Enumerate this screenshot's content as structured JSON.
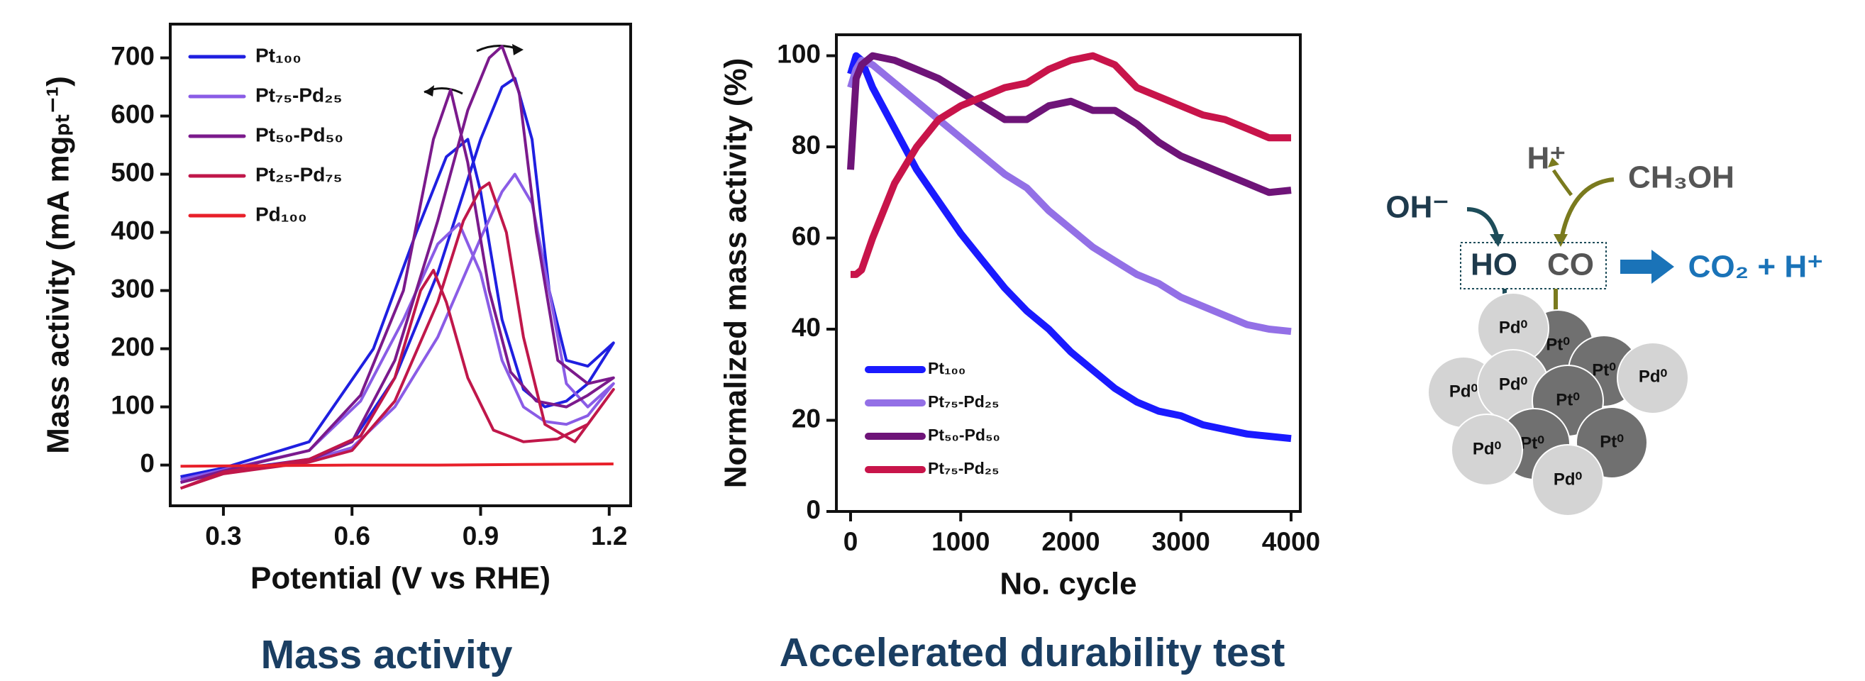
{
  "chart_data": [
    {
      "type": "line",
      "caption": "Mass activity",
      "x_label": "Potential (V vs RHE)",
      "y_label": "Mass activity (mA mgₚₜ⁻¹)",
      "xlim": [
        0.176,
        1.25
      ],
      "ylim": [
        -70,
        758
      ],
      "xticks": [
        0.3,
        0.6,
        0.9,
        1.2
      ],
      "yticks": [
        0,
        100,
        200,
        300,
        400,
        500,
        600,
        700
      ],
      "legend": "upper left",
      "series": [
        {
          "name": "Pt₁₀₀",
          "color": "#1f1fe0",
          "x": [
            0.2,
            0.3,
            0.4,
            0.5,
            0.6,
            0.7,
            0.8,
            0.9,
            0.95,
            0.98,
            1.02,
            1.06,
            1.1,
            1.15,
            1.21,
            1.15,
            1.1,
            1.05,
            1.0,
            0.95,
            0.9,
            0.87,
            0.82,
            0.75,
            0.65,
            0.5,
            0.3,
            0.2
          ],
          "values": [
            -20,
            -8,
            0,
            10,
            40,
            150,
            330,
            560,
            650,
            665,
            560,
            300,
            180,
            170,
            210,
            140,
            110,
            100,
            130,
            250,
            470,
            560,
            530,
            400,
            200,
            40,
            -5,
            -20
          ]
        },
        {
          "name": "Pt₇₅-Pd₂₅",
          "color": "#8a5ce6",
          "x": [
            0.2,
            0.3,
            0.4,
            0.5,
            0.6,
            0.7,
            0.8,
            0.9,
            0.95,
            0.98,
            1.02,
            1.06,
            1.1,
            1.15,
            1.21,
            1.15,
            1.1,
            1.05,
            1.0,
            0.95,
            0.9,
            0.85,
            0.8,
            0.72,
            0.62,
            0.5,
            0.3,
            0.2
          ],
          "values": [
            -25,
            -10,
            -2,
            8,
            30,
            100,
            220,
            390,
            470,
            500,
            450,
            300,
            140,
            100,
            140,
            85,
            70,
            75,
            100,
            180,
            330,
            415,
            380,
            250,
            110,
            25,
            -8,
            -25
          ]
        },
        {
          "name": "Pt₅₀-Pd₅₀",
          "color": "#7b1a8c",
          "x": [
            0.2,
            0.3,
            0.4,
            0.5,
            0.6,
            0.7,
            0.8,
            0.87,
            0.92,
            0.95,
            0.99,
            1.03,
            1.08,
            1.15,
            1.21,
            1.15,
            1.1,
            1.03,
            0.97,
            0.92,
            0.87,
            0.83,
            0.79,
            0.72,
            0.62,
            0.5,
            0.3,
            0.2
          ],
          "values": [
            -30,
            -12,
            -3,
            8,
            40,
            180,
            420,
            610,
            700,
            720,
            640,
            400,
            180,
            140,
            150,
            120,
            100,
            110,
            160,
            300,
            520,
            645,
            560,
            300,
            120,
            25,
            -10,
            -30
          ]
        },
        {
          "name": "Pt₂₅-Pd₇₅",
          "color": "#c0174a",
          "x": [
            0.2,
            0.3,
            0.4,
            0.5,
            0.6,
            0.7,
            0.8,
            0.86,
            0.9,
            0.92,
            0.96,
            1.0,
            1.05,
            1.12,
            1.21,
            1.15,
            1.08,
            1.0,
            0.93,
            0.87,
            0.82,
            0.79,
            0.76,
            0.7,
            0.62,
            0.5,
            0.3,
            0.2
          ],
          "values": [
            -40,
            -15,
            -5,
            5,
            25,
            110,
            280,
            420,
            475,
            485,
            400,
            220,
            70,
            40,
            130,
            70,
            45,
            40,
            60,
            150,
            280,
            335,
            300,
            150,
            50,
            10,
            -12,
            -40
          ]
        },
        {
          "name": "Pd₁₀₀",
          "color": "#e8202a",
          "x": [
            0.2,
            0.4,
            0.6,
            0.8,
            1.0,
            1.21
          ],
          "values": [
            -2,
            -1,
            0,
            0,
            1,
            2
          ]
        }
      ]
    },
    {
      "type": "line",
      "caption": "Accelerated durability test",
      "x_label": "No. cycle",
      "y_label": "Normalized mass activity (%)",
      "xlim": [
        -129,
        4084
      ],
      "ylim": [
        0,
        104.6
      ],
      "xticks": [
        0,
        1000,
        2000,
        3000,
        4000
      ],
      "yticks": [
        0,
        20,
        40,
        60,
        80,
        100
      ],
      "legend": "lower left",
      "x": [
        0,
        50,
        100,
        200,
        400,
        600,
        800,
        1000,
        1200,
        1400,
        1600,
        1800,
        2000,
        2200,
        2400,
        2600,
        2800,
        3000,
        3200,
        3400,
        3600,
        3800,
        4000
      ],
      "series": [
        {
          "name": "Pt₁₀₀",
          "color": "#1a1aff",
          "values": [
            96,
            100,
            99,
            93,
            84,
            75,
            68,
            61,
            55,
            49,
            44,
            40,
            35,
            31,
            27,
            24,
            22,
            21,
            19,
            18,
            17,
            16.5,
            16
          ]
        },
        {
          "name": "Pt₇₅-Pd₂₅",
          "color": "#9370e6",
          "values": [
            93,
            97,
            99,
            98,
            94,
            90,
            86,
            82,
            78,
            74,
            71,
            66,
            62,
            58,
            55,
            52,
            50,
            47,
            45,
            43,
            41,
            40,
            39.5
          ]
        },
        {
          "name": "Pt₅₀-Pd₅₀",
          "color": "#6e1478",
          "values": [
            75,
            95,
            98,
            100,
            99,
            97,
            95,
            92,
            89,
            86,
            86,
            89,
            90,
            88,
            88,
            85,
            81,
            78,
            76,
            74,
            72,
            70,
            70.5
          ]
        },
        {
          "name": "Pt₇₅-Pd₂₅",
          "color": "#c8144a",
          "values": [
            52,
            52,
            53,
            60,
            72,
            80,
            86,
            89,
            91,
            93,
            94,
            97,
            99,
            100,
            98,
            93,
            91,
            89,
            87,
            86,
            84,
            82,
            82
          ]
        }
      ]
    }
  ],
  "diagram": {
    "oh": "OH⁻",
    "h": "H⁺",
    "methanol": "CH₃OH",
    "ho": "HO",
    "co": "CO",
    "product": "CO₂ + H⁺",
    "particles": [
      "Pt⁰",
      "Pd⁰",
      "Pt⁰",
      "Pd⁰",
      "Pd⁰",
      "Pd⁰",
      "Pt⁰",
      "Pt⁰",
      "Pt⁰",
      "Pd⁰",
      "Pd⁰"
    ]
  }
}
